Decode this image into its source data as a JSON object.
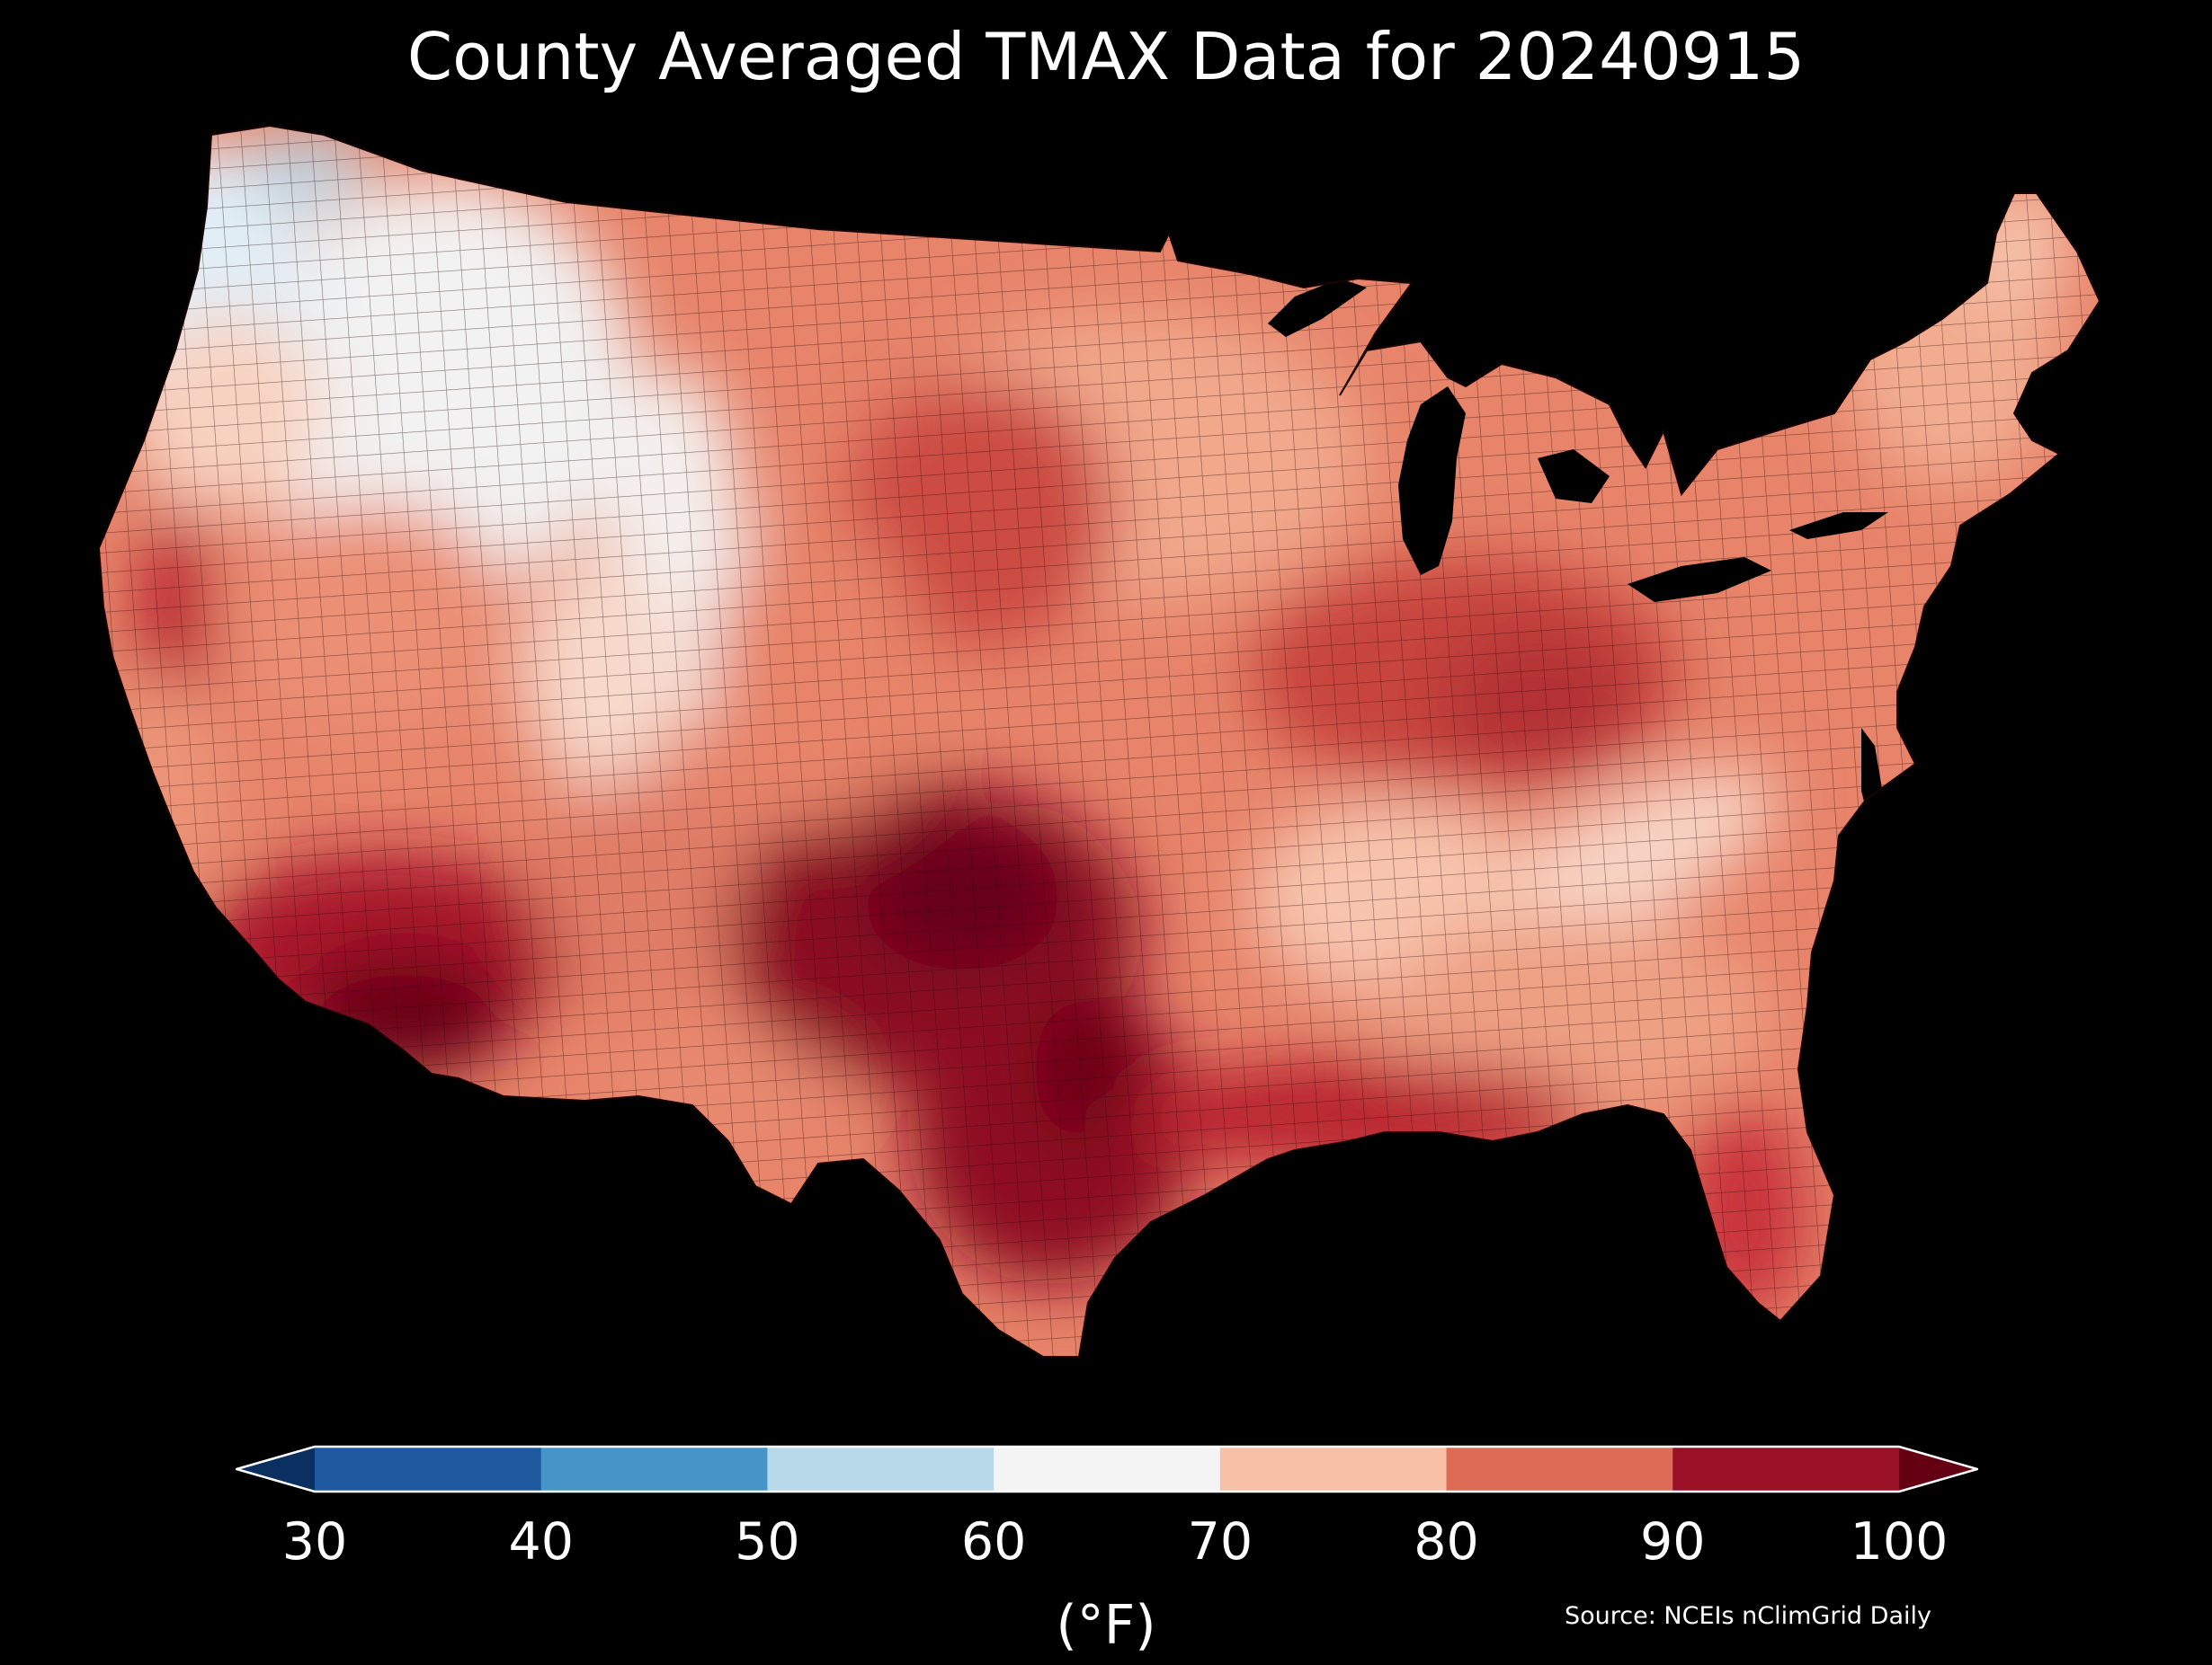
{
  "title": "County Averaged TMAX Data for 20240915",
  "colorbar": {
    "ticks": [
      "30",
      "40",
      "50",
      "60",
      "70",
      "80",
      "90",
      "100"
    ],
    "bins": [
      {
        "range": "<30",
        "color": "#0b2f60"
      },
      {
        "range": "30-40",
        "color": "#1f5aa0"
      },
      {
        "range": "40-50",
        "color": "#4795c8"
      },
      {
        "range": "50-60",
        "color": "#b8d9ea"
      },
      {
        "range": "60-70",
        "color": "#f4f4f4"
      },
      {
        "range": "70-80",
        "color": "#f9c2a6"
      },
      {
        "range": "80-90",
        "color": "#dd6b55"
      },
      {
        "range": "90-100",
        "color": "#9a1127"
      },
      {
        "range": ">100",
        "color": "#640012"
      }
    ],
    "unit": "(°F)"
  },
  "source": "Source: NCEIs nClimGrid Daily",
  "map": {
    "region": "Contiguous United States",
    "regions": [
      {
        "name": "pacific-northwest",
        "color": "#e2eef6"
      },
      {
        "name": "northern-rockies",
        "color": "#f2f2f2"
      },
      {
        "name": "northern-plains",
        "color": "#f1a88b"
      },
      {
        "name": "central-valley-california",
        "color": "#b8202f"
      },
      {
        "name": "great-basin",
        "color": "#eb8f75"
      },
      {
        "name": "desert-southwest",
        "color": "#9a1127"
      },
      {
        "name": "lower-colorado-river",
        "color": "#6a0418"
      },
      {
        "name": "southern-rockies",
        "color": "#f8d2c0"
      },
      {
        "name": "southern-plains-texas",
        "color": "#8b0f23"
      },
      {
        "name": "central-plains",
        "color": "#dd6b55"
      },
      {
        "name": "gulf-coast",
        "color": "#b8202f"
      },
      {
        "name": "ohio-valley",
        "color": "#c44a42"
      },
      {
        "name": "appalachians",
        "color": "#f7d4c4"
      },
      {
        "name": "southeast",
        "color": "#ef9e82"
      },
      {
        "name": "florida",
        "color": "#c8303a"
      },
      {
        "name": "northeast",
        "color": "#e58a6f"
      },
      {
        "name": "new-england",
        "color": "#f3b59a"
      }
    ]
  }
}
